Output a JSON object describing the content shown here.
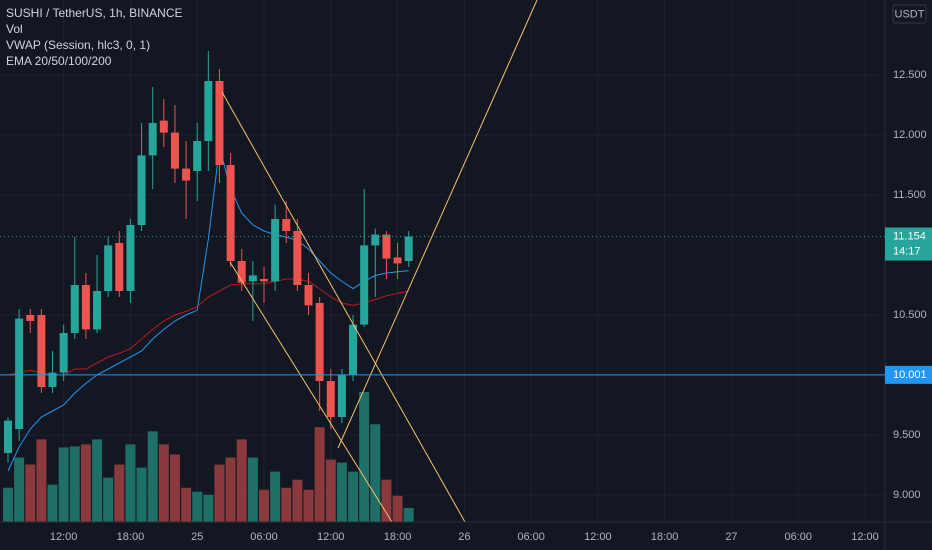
{
  "chart_data": {
    "type": "candlestick",
    "title": "SUSHI / TetherUS, 1h, BINANCE",
    "currency": "USDT",
    "categories": [
      null,
      null,
      null,
      null,
      null,
      "12:00",
      null,
      null,
      null,
      null,
      null,
      "18:00",
      null,
      null,
      null,
      null,
      null,
      "25",
      null,
      null,
      null,
      null,
      null,
      "06:00",
      null,
      null,
      null,
      null,
      null,
      "12:00",
      null,
      null,
      null,
      null,
      null,
      "18:00",
      null,
      null,
      null,
      null,
      null,
      "26",
      null,
      null,
      null,
      null,
      null,
      "06:00",
      null,
      null,
      null,
      null,
      null,
      "12:00",
      null,
      null,
      null,
      null,
      null,
      "18:00",
      null,
      null,
      null,
      null,
      null,
      "27",
      null,
      null,
      null,
      null,
      null,
      "06:00",
      null,
      null,
      null,
      null,
      null,
      "12:00",
      null
    ],
    "open": [
      9.35,
      9.55,
      10.5,
      10.5,
      9.9,
      10.02,
      10.35,
      10.75,
      10.38,
      10.7,
      11.1,
      10.7,
      11.25,
      11.83,
      12.12,
      12.02,
      11.72,
      11.7,
      11.95,
      12.45,
      11.75,
      10.95,
      10.78,
      10.8,
      10.78,
      11.3,
      11.2,
      10.75,
      10.6,
      9.95,
      9.65,
      10.0,
      10.42,
      11.08,
      11.17,
      10.98,
      10.95,
      null,
      null,
      null,
      null,
      null,
      null,
      null,
      null,
      null,
      null,
      null,
      null,
      null,
      null,
      null,
      null,
      null,
      null,
      null,
      null,
      null,
      null,
      null,
      null,
      null,
      null,
      null,
      null,
      null,
      null,
      null,
      null,
      null,
      null,
      null,
      null,
      null,
      null,
      null,
      null,
      null,
      null
    ],
    "high": [
      9.65,
      10.55,
      10.55,
      10.55,
      10.2,
      10.42,
      11.15,
      10.85,
      11.0,
      11.15,
      11.2,
      11.3,
      12.1,
      12.4,
      12.3,
      12.25,
      11.95,
      12.1,
      12.7,
      12.55,
      11.85,
      11.05,
      10.95,
      10.9,
      11.42,
      11.45,
      11.3,
      10.85,
      10.65,
      10.05,
      10.05,
      10.5,
      11.55,
      11.22,
      11.2,
      11.1,
      11.2,
      null,
      null,
      null,
      null,
      null,
      null,
      null,
      null,
      null,
      null,
      null,
      null,
      null,
      null,
      null,
      null,
      null,
      null,
      null,
      null,
      null,
      null,
      null,
      null,
      null,
      null,
      null,
      null,
      null,
      null,
      null,
      null,
      null,
      null,
      null,
      null,
      null,
      null,
      null,
      null,
      null,
      null
    ],
    "low": [
      9.27,
      9.45,
      10.35,
      9.85,
      9.85,
      9.95,
      10.3,
      10.3,
      10.35,
      10.65,
      10.65,
      10.6,
      11.2,
      11.55,
      11.9,
      11.6,
      11.3,
      11.45,
      11.7,
      11.6,
      10.9,
      10.7,
      10.45,
      10.6,
      10.7,
      11.1,
      10.7,
      10.5,
      9.7,
      9.55,
      9.6,
      9.95,
      10.4,
      10.65,
      10.8,
      10.8,
      10.9,
      null,
      null,
      null,
      null,
      null,
      null,
      null,
      null,
      null,
      null,
      null,
      null,
      null,
      null,
      null,
      null,
      null,
      null,
      null,
      null,
      null,
      null,
      null,
      null,
      null,
      null,
      null,
      null,
      null,
      null,
      null,
      null,
      null,
      null,
      null,
      null,
      null,
      null,
      null,
      null,
      null,
      null
    ],
    "close": [
      9.62,
      10.47,
      10.45,
      9.9,
      10.02,
      10.35,
      10.75,
      10.38,
      10.7,
      11.08,
      10.7,
      11.25,
      11.83,
      12.1,
      12.02,
      11.72,
      11.62,
      11.95,
      12.45,
      11.75,
      10.95,
      10.77,
      10.83,
      10.78,
      11.3,
      11.2,
      10.75,
      10.58,
      9.95,
      9.65,
      10.0,
      10.42,
      11.08,
      11.17,
      10.97,
      10.93,
      11.154,
      null,
      null,
      null,
      null,
      null,
      null,
      null,
      null,
      null,
      null,
      null,
      null,
      null,
      null,
      null,
      null,
      null,
      null,
      null,
      null,
      null,
      null,
      null,
      null,
      null,
      null,
      null,
      null,
      null,
      null,
      null,
      null,
      null,
      null,
      null,
      null,
      null,
      null,
      null,
      null,
      null,
      null
    ],
    "up_color": "#26a69a",
    "down_color": "#ef5350",
    "volume": {
      "name": "Vol",
      "up_color": "#1f6f69",
      "down_color": "#8a3a3c",
      "values": [
        34,
        64,
        57,
        82,
        37,
        74,
        75,
        77,
        82,
        44,
        57,
        77,
        54,
        90,
        77,
        67,
        34,
        30,
        27,
        57,
        64,
        82,
        64,
        32,
        50,
        34,
        42,
        32,
        94,
        62,
        59,
        50,
        129,
        97,
        42,
        26,
        14,
        null,
        null,
        null,
        null,
        null,
        null,
        null,
        null,
        null,
        null,
        null,
        null,
        null,
        null,
        null,
        null,
        null,
        null,
        null,
        null,
        null,
        null,
        null,
        null,
        null,
        null,
        null,
        null,
        null,
        null,
        null,
        null,
        null,
        null,
        null,
        null,
        null,
        null,
        null,
        null,
        null,
        null
      ]
    },
    "series": [
      {
        "name": "VWAP (Session, hlc3, 0, 1)",
        "color": "#2196f3",
        "values": [
          9.2,
          9.4,
          9.55,
          9.65,
          9.7,
          9.75,
          9.85,
          9.93,
          10.0,
          10.05,
          10.1,
          10.15,
          10.2,
          10.3,
          10.38,
          10.45,
          10.5,
          10.54,
          11.13,
          11.9,
          11.55,
          11.35,
          11.25,
          11.2,
          11.17,
          11.15,
          11.12,
          11.05,
          10.95,
          10.85,
          10.78,
          10.72,
          10.78,
          10.83,
          10.85,
          10.86,
          10.87,
          null,
          null,
          null,
          null,
          null,
          null,
          null,
          null,
          null,
          null,
          null,
          null,
          null,
          null,
          null,
          null,
          null,
          null,
          null,
          null,
          null,
          null,
          null,
          null,
          null,
          null,
          null,
          null,
          null,
          null,
          null,
          null,
          null,
          null,
          null,
          null,
          null,
          null,
          null,
          null,
          null,
          null
        ]
      },
      {
        "name": "EMA 20/50/100/200",
        "color": "#b71c1c",
        "values": [
          10.0,
          10.02,
          10.04,
          10.02,
          10.0,
          10.0,
          10.05,
          10.05,
          10.1,
          10.15,
          10.18,
          10.22,
          10.3,
          10.38,
          10.45,
          10.5,
          10.53,
          10.57,
          10.65,
          10.7,
          10.75,
          10.76,
          10.76,
          10.76,
          10.78,
          10.8,
          10.8,
          10.78,
          10.72,
          10.65,
          10.6,
          10.58,
          10.6,
          10.63,
          10.66,
          10.68,
          10.7,
          null,
          null,
          null,
          null,
          null,
          null,
          null,
          null,
          null,
          null,
          null,
          null,
          null,
          null,
          null,
          null,
          null,
          null,
          null,
          null,
          null,
          null,
          null,
          null,
          null,
          null,
          null,
          null,
          null,
          null,
          null,
          null,
          null,
          null,
          null,
          null,
          null,
          null,
          null,
          null,
          null,
          null
        ]
      }
    ],
    "last_price": {
      "value": 11.154,
      "label": "11.154",
      "color": "#26a69a"
    },
    "countdown": "14:17",
    "price_line": {
      "value": 10.001,
      "label": "10.001",
      "color": "#2196f3"
    },
    "ylim": [
      8.775,
      13.125
    ],
    "yticks": [
      {
        "value": 9,
        "label": "9.000"
      },
      {
        "value": 9.5,
        "label": "9.500"
      },
      {
        "value": 10.5,
        "label": "10.500"
      },
      {
        "value": 11.5,
        "label": "11.500"
      },
      {
        "value": 12,
        "label": "12.000"
      },
      {
        "value": 12.5,
        "label": "12.500"
      }
    ],
    "grid": true
  }
}
